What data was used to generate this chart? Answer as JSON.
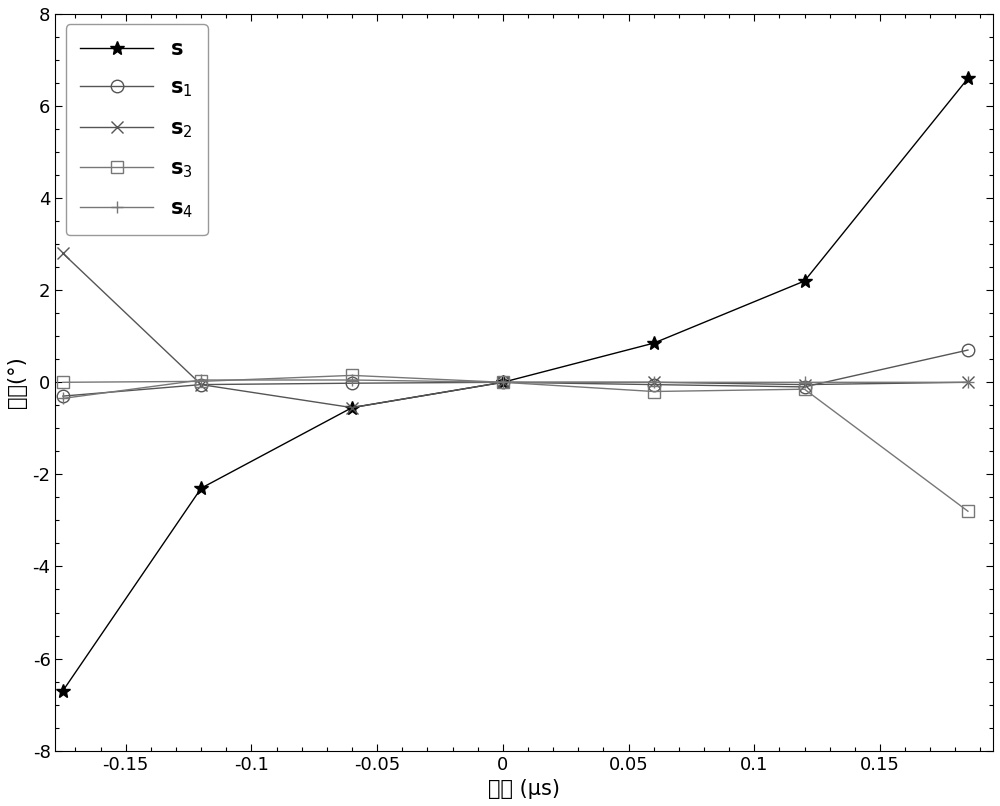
{
  "xlabel": "延时 (μs)",
  "ylabel": "相位(°)",
  "xlim": [
    -0.178,
    0.195
  ],
  "ylim": [
    -8,
    8
  ],
  "xticks": [
    -0.15,
    -0.1,
    -0.05,
    0,
    0.05,
    0.1,
    0.15
  ],
  "yticks": [
    -8,
    -6,
    -4,
    -2,
    0,
    2,
    4,
    6,
    8
  ],
  "series": [
    {
      "label_main": "s",
      "label_sub": "",
      "marker": "*",
      "color": "#000000",
      "linewidth": 1.0,
      "markersize": 10,
      "fillstyle": "full",
      "x": [
        -0.175,
        -0.12,
        -0.06,
        0.0,
        0.06,
        0.12,
        0.185
      ],
      "y": [
        -6.7,
        -2.3,
        -0.55,
        0.0,
        0.85,
        2.2,
        6.6
      ]
    },
    {
      "label_main": "s",
      "label_sub": "1",
      "marker": "o",
      "color": "#555555",
      "linewidth": 1.0,
      "markersize": 9,
      "fillstyle": "none",
      "x": [
        -0.175,
        -0.12,
        -0.06,
        0.0,
        0.06,
        0.12,
        0.185
      ],
      "y": [
        -0.3,
        -0.05,
        -0.02,
        0.0,
        -0.05,
        -0.1,
        0.7
      ]
    },
    {
      "label_main": "s",
      "label_sub": "2",
      "marker": "x",
      "color": "#555555",
      "linewidth": 1.0,
      "markersize": 9,
      "fillstyle": "full",
      "x": [
        -0.175,
        -0.12,
        -0.06,
        0.0,
        0.06,
        0.12,
        0.185
      ],
      "y": [
        2.8,
        -0.05,
        -0.55,
        0.0,
        0.0,
        -0.05,
        0.0
      ]
    },
    {
      "label_main": "s",
      "label_sub": "3",
      "marker": "s",
      "color": "#777777",
      "linewidth": 1.0,
      "markersize": 8,
      "fillstyle": "none",
      "x": [
        -0.175,
        -0.12,
        -0.06,
        0.0,
        0.06,
        0.12,
        0.185
      ],
      "y": [
        0.0,
        0.02,
        0.15,
        0.0,
        -0.2,
        -0.15,
        -2.8
      ]
    },
    {
      "label_main": "s",
      "label_sub": "4",
      "marker": "+",
      "color": "#777777",
      "linewidth": 1.0,
      "markersize": 9,
      "fillstyle": "full",
      "x": [
        -0.175,
        -0.12,
        -0.06,
        0.0,
        0.06,
        0.12,
        0.185
      ],
      "y": [
        -0.35,
        0.05,
        0.05,
        0.0,
        0.0,
        0.0,
        0.0
      ]
    }
  ],
  "figsize": [
    10.0,
    8.06
  ],
  "dpi": 100
}
